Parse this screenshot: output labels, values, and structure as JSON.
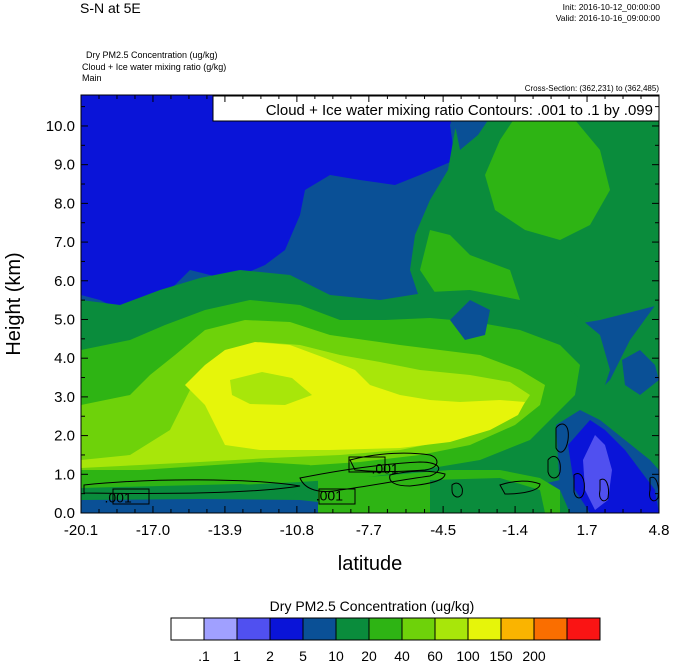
{
  "header": {
    "title": "S-N at 5E",
    "init": "Init: 2016-10-12_00:00:00",
    "valid": "Valid: 2016-10-16_09:00:00",
    "field_1": "Dry PM2.5 Concentration   (ug/kg)",
    "field_2": "Cloud + Ice water mixing ratio   (g/kg)",
    "field_3": "Main",
    "cross_section": "Cross-Section: (362,231) to (362,485)"
  },
  "chart_data": {
    "type": "heatmap",
    "contour_title": "Cloud + Ice water mixing ratio Contours: .001 to .1 by .099",
    "xlabel": "latitude",
    "ylabel": "Height (km)",
    "xlim": [
      -20.1,
      4.8
    ],
    "ylim": [
      0.0,
      10.8
    ],
    "x_ticks": [
      "-20.1",
      "-17.0",
      "-13.9",
      "-10.8",
      "-7.7",
      "-4.5",
      "-1.4",
      "1.7",
      "4.8"
    ],
    "y_ticks": [
      "0.0",
      "1.0",
      "2.0",
      "3.0",
      "4.0",
      "5.0",
      "6.0",
      "7.0",
      "8.0",
      "9.0",
      "10.0"
    ],
    "contour_labels": [
      {
        "text": ".001",
        "x": -18.5,
        "y": 0.4
      },
      {
        "text": ".001",
        "x": -9.4,
        "y": 0.45
      },
      {
        "text": ".001",
        "x": -7.0,
        "y": 1.15
      }
    ],
    "legend": {
      "title": "Dry PM2.5 Concentration  (ug/kg)",
      "labels": [
        ".1",
        "1",
        "2",
        "5",
        "10",
        "20",
        "40",
        "60",
        "100",
        "150",
        "200"
      ],
      "colors": [
        "#ffffff",
        "#a0a0ff",
        "#5050f0",
        "#0a14d8",
        "#0a5096",
        "#0a8c3c",
        "#2eb414",
        "#6ed20a",
        "#a8e60a",
        "#e6f50a",
        "#fab400",
        "#fa6e00",
        "#fa1414"
      ]
    }
  }
}
